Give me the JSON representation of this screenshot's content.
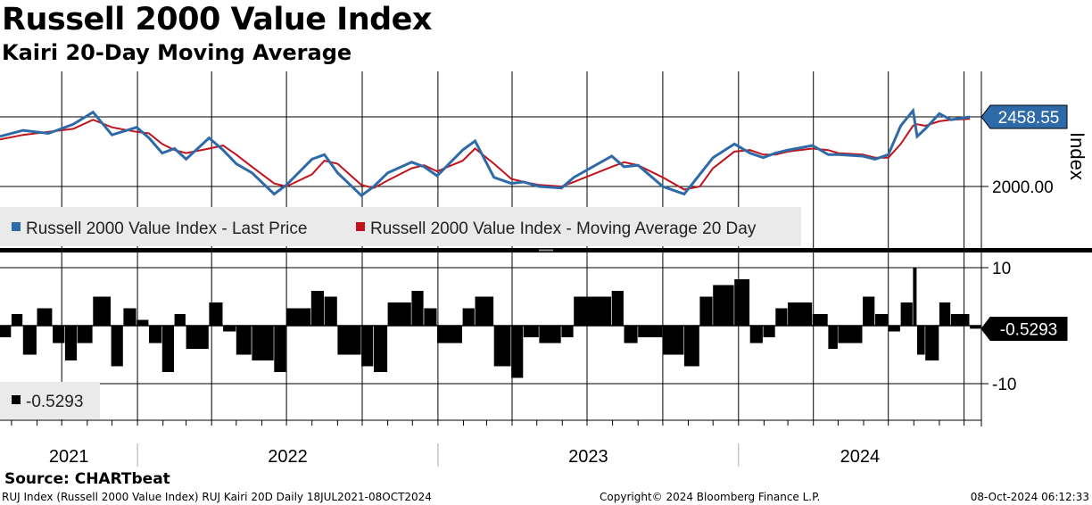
{
  "title": "Russell 2000 Value Index",
  "subtitle": "Kairi 20-Day Moving Average",
  "source": "Source: CHARTbeat",
  "footer": {
    "left": "RUJ Index (Russell 2000 Value Index) RUJ Kairi 20D  Daily 18JUL2021-08OCT2024",
    "center": "Copyright© 2024 Bloomberg Finance L.P.",
    "right": "08-Oct-2024 06:12:33"
  },
  "colors": {
    "price": "#2e6aa8",
    "ma": "#c0141c",
    "kairi": "#000000",
    "badge_price": "#2e6aa8",
    "badge_kairi": "#000000"
  },
  "chart_data": [
    {
      "type": "line",
      "panel": "upper",
      "ylabel": "Index",
      "y_ticks": [
        2000
      ],
      "y_tick_labels": [
        "2000.00"
      ],
      "last_value_label": "2458.55",
      "legend": [
        {
          "name": "Russell 2000 Value Index - Last Price",
          "color": "#2e6aa8"
        },
        {
          "name": "Russell 2000 Value Index - Moving Average 20 Day",
          "color": "#c0141c"
        }
      ],
      "x_labels": [
        "2021",
        "2022",
        "2023",
        "2024"
      ],
      "series": [
        {
          "name": "Russell 2000 Value Index - Last Price",
          "x": [
            "2021-07-18",
            "2021-08-15",
            "2021-09-15",
            "2021-10-15",
            "2021-11-08",
            "2021-12-01",
            "2021-12-31",
            "2022-01-15",
            "2022-01-31",
            "2022-02-15",
            "2022-03-01",
            "2022-03-29",
            "2022-04-15",
            "2022-05-01",
            "2022-05-20",
            "2022-06-16",
            "2022-07-01",
            "2022-08-01",
            "2022-08-16",
            "2022-09-01",
            "2022-09-30",
            "2022-10-15",
            "2022-11-01",
            "2022-11-30",
            "2022-12-15",
            "2022-12-31",
            "2023-01-31",
            "2023-02-15",
            "2023-03-10",
            "2023-03-31",
            "2023-04-15",
            "2023-05-04",
            "2023-05-31",
            "2023-06-15",
            "2023-07-31",
            "2023-08-15",
            "2023-09-01",
            "2023-10-01",
            "2023-10-27",
            "2023-11-15",
            "2023-12-01",
            "2023-12-27",
            "2024-01-15",
            "2024-01-31",
            "2024-02-15",
            "2024-03-01",
            "2024-03-31",
            "2024-04-19",
            "2024-05-01",
            "2024-05-31",
            "2024-06-15",
            "2024-07-01",
            "2024-07-16",
            "2024-07-31",
            "2024-08-05",
            "2024-08-15",
            "2024-09-01",
            "2024-09-15",
            "2024-10-08"
          ],
          "values": [
            2330,
            2370,
            2350,
            2410,
            2490,
            2340,
            2390,
            2320,
            2220,
            2250,
            2180,
            2320,
            2240,
            2150,
            2090,
            1950,
            2010,
            2180,
            2210,
            2090,
            1940,
            2000,
            2090,
            2160,
            2130,
            2070,
            2240,
            2300,
            2060,
            2020,
            2030,
            2000,
            1990,
            2060,
            2200,
            2130,
            2140,
            2000,
            1950,
            2080,
            2190,
            2280,
            2220,
            2190,
            2220,
            2240,
            2270,
            2210,
            2210,
            2200,
            2180,
            2210,
            2400,
            2500,
            2330,
            2380,
            2480,
            2440,
            2458.55
          ]
        },
        {
          "name": "Russell 2000 Value Index - Moving Average 20 Day",
          "x": [
            "2021-07-18",
            "2021-08-15",
            "2021-09-15",
            "2021-10-15",
            "2021-11-08",
            "2021-12-01",
            "2021-12-31",
            "2022-01-15",
            "2022-01-31",
            "2022-02-15",
            "2022-03-01",
            "2022-03-29",
            "2022-04-15",
            "2022-05-01",
            "2022-05-20",
            "2022-06-16",
            "2022-07-01",
            "2022-08-01",
            "2022-08-16",
            "2022-09-01",
            "2022-09-30",
            "2022-10-15",
            "2022-11-01",
            "2022-11-30",
            "2022-12-15",
            "2022-12-31",
            "2023-01-31",
            "2023-02-15",
            "2023-03-10",
            "2023-03-31",
            "2023-04-15",
            "2023-05-04",
            "2023-05-31",
            "2023-06-15",
            "2023-07-31",
            "2023-08-15",
            "2023-09-01",
            "2023-10-01",
            "2023-10-27",
            "2023-11-15",
            "2023-12-01",
            "2023-12-27",
            "2024-01-15",
            "2024-01-31",
            "2024-02-15",
            "2024-03-01",
            "2024-03-31",
            "2024-04-19",
            "2024-05-01",
            "2024-05-31",
            "2024-06-15",
            "2024-07-01",
            "2024-07-16",
            "2024-07-31",
            "2024-08-05",
            "2024-08-15",
            "2024-09-01",
            "2024-09-15",
            "2024-10-08"
          ],
          "values": [
            2310,
            2340,
            2360,
            2380,
            2440,
            2390,
            2360,
            2350,
            2280,
            2240,
            2220,
            2250,
            2270,
            2210,
            2130,
            2020,
            2000,
            2080,
            2170,
            2150,
            2010,
            1990,
            2040,
            2120,
            2140,
            2100,
            2170,
            2250,
            2150,
            2050,
            2030,
            2010,
            2000,
            2030,
            2130,
            2160,
            2140,
            2060,
            1980,
            2000,
            2120,
            2230,
            2240,
            2210,
            2210,
            2230,
            2250,
            2240,
            2220,
            2210,
            2190,
            2190,
            2280,
            2400,
            2410,
            2400,
            2430,
            2440,
            2445
          ]
        }
      ]
    },
    {
      "type": "bar",
      "panel": "lower",
      "y_ticks": [
        10,
        -10
      ],
      "y_tick_labels": [
        "10",
        "-10"
      ],
      "last_value_label": "-0.5293",
      "legend": [
        {
          "name": "-0.5293",
          "color": "#000000"
        }
      ],
      "series": [
        {
          "name": "-0.5293",
          "x": [
            "2021-07-18",
            "2021-08-01",
            "2021-08-15",
            "2021-09-01",
            "2021-09-20",
            "2021-10-05",
            "2021-10-20",
            "2021-11-08",
            "2021-11-30",
            "2021-12-15",
            "2021-12-31",
            "2022-01-15",
            "2022-01-31",
            "2022-02-15",
            "2022-03-01",
            "2022-03-29",
            "2022-04-15",
            "2022-05-01",
            "2022-05-20",
            "2022-06-16",
            "2022-07-01",
            "2022-07-31",
            "2022-08-16",
            "2022-09-01",
            "2022-09-30",
            "2022-10-15",
            "2022-11-01",
            "2022-11-30",
            "2022-12-15",
            "2022-12-31",
            "2023-01-31",
            "2023-02-15",
            "2023-03-10",
            "2023-03-31",
            "2023-04-15",
            "2023-05-04",
            "2023-05-31",
            "2023-06-15",
            "2023-07-31",
            "2023-08-15",
            "2023-09-01",
            "2023-10-01",
            "2023-10-27",
            "2023-11-15",
            "2023-12-01",
            "2023-12-27",
            "2024-01-15",
            "2024-01-31",
            "2024-02-15",
            "2024-03-01",
            "2024-03-31",
            "2024-04-19",
            "2024-05-01",
            "2024-05-31",
            "2024-06-15",
            "2024-07-01",
            "2024-07-16",
            "2024-07-31",
            "2024-08-05",
            "2024-08-15",
            "2024-09-01",
            "2024-09-15",
            "2024-10-08"
          ],
          "values": [
            -2,
            2,
            -5,
            3,
            -3,
            -6,
            -3,
            5,
            -7,
            3,
            1,
            -3,
            -8,
            2,
            -4,
            4,
            -1,
            -5,
            -6,
            -8,
            3,
            6,
            5,
            -5,
            -7,
            -8,
            4,
            6,
            3,
            -3,
            3,
            5,
            -7,
            -9,
            -2,
            -3,
            -2,
            5,
            6,
            -3,
            -2,
            -5,
            -7,
            5,
            7,
            8,
            -3,
            -2,
            3,
            4,
            2,
            -4,
            -3,
            5,
            2,
            -1,
            4,
            10,
            -5,
            -6,
            4,
            2,
            -0.5293
          ]
        }
      ]
    }
  ]
}
